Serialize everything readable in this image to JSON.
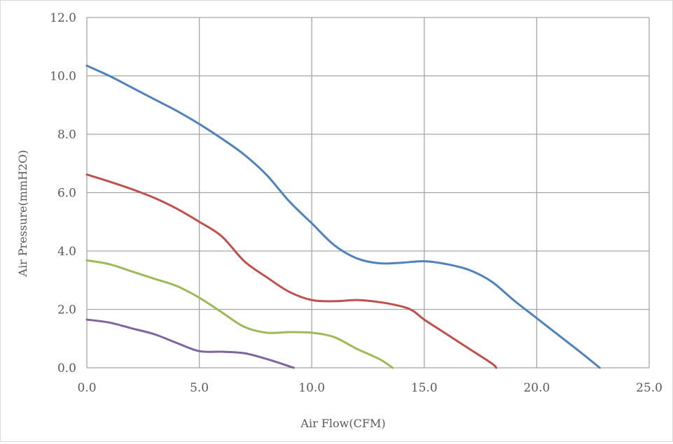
{
  "chart_data": {
    "type": "line",
    "xlabel": "Air Flow(CFM)",
    "ylabel": "Air Pressure(mmH2O)",
    "xlim": [
      0,
      25
    ],
    "ylim": [
      0,
      12
    ],
    "xticks": [
      0,
      5,
      10,
      15,
      20,
      25
    ],
    "yticks": [
      0,
      2,
      4,
      6,
      8,
      10,
      12
    ],
    "xtick_labels": [
      "0.0",
      "5.0",
      "10.0",
      "15.0",
      "20.0",
      "25.0"
    ],
    "ytick_labels": [
      "0.0",
      "2.0",
      "4.0",
      "6.0",
      "8.0",
      "10.0",
      "12.0"
    ],
    "grid": true,
    "legend": "none",
    "series": [
      {
        "color": "#4f81bd",
        "points": [
          [
            0,
            10.35
          ],
          [
            1,
            10.0
          ],
          [
            2,
            9.6
          ],
          [
            3,
            9.2
          ],
          [
            4,
            8.8
          ],
          [
            5,
            8.35
          ],
          [
            6,
            7.85
          ],
          [
            7,
            7.3
          ],
          [
            8,
            6.6
          ],
          [
            9,
            5.7
          ],
          [
            10,
            4.95
          ],
          [
            11,
            4.2
          ],
          [
            12,
            3.75
          ],
          [
            13,
            3.58
          ],
          [
            14,
            3.6
          ],
          [
            15,
            3.65
          ],
          [
            16,
            3.55
          ],
          [
            17,
            3.35
          ],
          [
            18,
            2.95
          ],
          [
            19,
            2.3
          ],
          [
            20,
            1.7
          ],
          [
            21,
            1.1
          ],
          [
            22,
            0.5
          ],
          [
            22.8,
            0.0
          ]
        ]
      },
      {
        "color": "#c0504d",
        "points": [
          [
            0,
            6.62
          ],
          [
            1,
            6.38
          ],
          [
            2,
            6.12
          ],
          [
            3,
            5.82
          ],
          [
            4,
            5.45
          ],
          [
            5,
            5.0
          ],
          [
            6,
            4.5
          ],
          [
            7,
            3.65
          ],
          [
            8,
            3.1
          ],
          [
            9,
            2.6
          ],
          [
            10,
            2.32
          ],
          [
            11,
            2.28
          ],
          [
            12,
            2.32
          ],
          [
            13,
            2.25
          ],
          [
            14,
            2.1
          ],
          [
            14.5,
            1.95
          ],
          [
            15,
            1.65
          ],
          [
            16,
            1.15
          ],
          [
            17,
            0.65
          ],
          [
            18,
            0.15
          ],
          [
            18.2,
            0.0
          ]
        ]
      },
      {
        "color": "#9bbb59",
        "points": [
          [
            0,
            3.68
          ],
          [
            1,
            3.55
          ],
          [
            2,
            3.3
          ],
          [
            3,
            3.05
          ],
          [
            4,
            2.8
          ],
          [
            5,
            2.4
          ],
          [
            6,
            1.9
          ],
          [
            7,
            1.4
          ],
          [
            8,
            1.2
          ],
          [
            9,
            1.22
          ],
          [
            10,
            1.2
          ],
          [
            11,
            1.05
          ],
          [
            12,
            0.65
          ],
          [
            13,
            0.3
          ],
          [
            13.6,
            0.0
          ]
        ]
      },
      {
        "color": "#8064a2",
        "points": [
          [
            0,
            1.65
          ],
          [
            1,
            1.55
          ],
          [
            2,
            1.35
          ],
          [
            3,
            1.15
          ],
          [
            4,
            0.85
          ],
          [
            5,
            0.57
          ],
          [
            6,
            0.55
          ],
          [
            7,
            0.5
          ],
          [
            8,
            0.3
          ],
          [
            9,
            0.05
          ],
          [
            9.2,
            0.0
          ]
        ]
      }
    ]
  }
}
